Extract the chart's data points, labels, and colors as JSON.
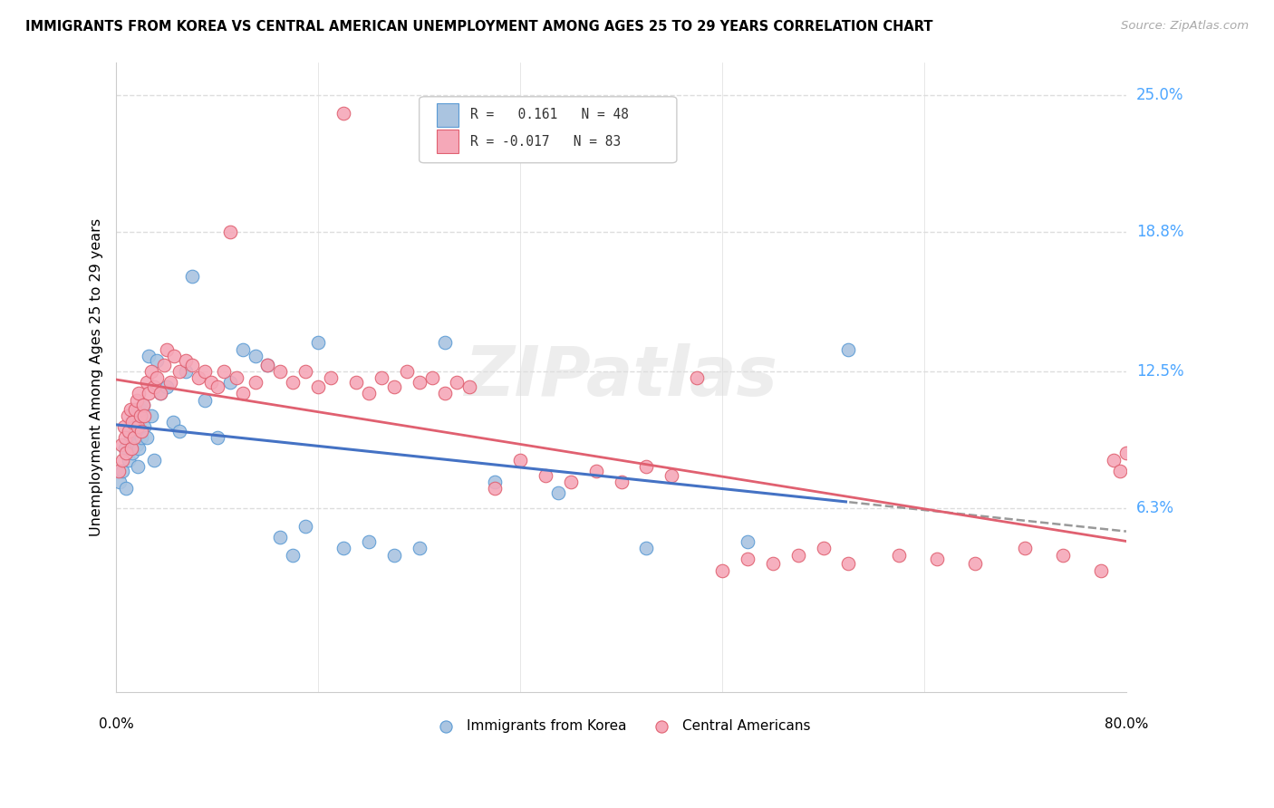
{
  "title": "IMMIGRANTS FROM KOREA VS CENTRAL AMERICAN UNEMPLOYMENT AMONG AGES 25 TO 29 YEARS CORRELATION CHART",
  "source": "Source: ZipAtlas.com",
  "ylabel": "Unemployment Among Ages 25 to 29 years",
  "xlim": [
    0,
    80
  ],
  "ylim": [
    -2,
    26.5
  ],
  "yticks": [
    6.3,
    12.5,
    18.8,
    25.0
  ],
  "ytick_labels": [
    "6.3%",
    "12.5%",
    "18.8%",
    "25.0%"
  ],
  "color_korea_fill": "#aac4e0",
  "color_korea_edge": "#5b9bd5",
  "color_central_fill": "#f5a8b8",
  "color_central_edge": "#e06070",
  "color_trend_korea": "#4472c4",
  "color_trend_central": "#e06070",
  "color_trend_dash": "#999999",
  "color_grid": "#dddddd",
  "korea_x": [
    0.3,
    0.5,
    0.7,
    0.8,
    1.0,
    1.1,
    1.2,
    1.3,
    1.4,
    1.5,
    1.6,
    1.7,
    1.8,
    1.9,
    2.0,
    2.1,
    2.2,
    2.4,
    2.6,
    2.8,
    3.0,
    3.2,
    3.5,
    4.0,
    4.5,
    5.0,
    5.5,
    6.0,
    7.0,
    8.0,
    9.0,
    10.0,
    11.0,
    12.0,
    13.0,
    14.0,
    15.0,
    16.0,
    18.0,
    20.0,
    22.0,
    24.0,
    26.0,
    30.0,
    35.0,
    42.0,
    50.0,
    58.0
  ],
  "korea_y": [
    7.5,
    8.0,
    9.0,
    7.2,
    8.5,
    9.5,
    10.2,
    8.8,
    9.8,
    10.5,
    9.2,
    8.2,
    9.0,
    10.8,
    9.5,
    11.0,
    10.0,
    9.5,
    13.2,
    10.5,
    8.5,
    13.0,
    11.5,
    11.8,
    10.2,
    9.8,
    12.5,
    16.8,
    11.2,
    9.5,
    12.0,
    13.5,
    13.2,
    12.8,
    5.0,
    4.2,
    5.5,
    13.8,
    4.5,
    4.8,
    4.2,
    4.5,
    13.8,
    7.5,
    7.0,
    4.5,
    4.8,
    13.5
  ],
  "central_x": [
    0.2,
    0.4,
    0.5,
    0.6,
    0.7,
    0.8,
    0.9,
    1.0,
    1.1,
    1.2,
    1.3,
    1.4,
    1.5,
    1.6,
    1.7,
    1.8,
    1.9,
    2.0,
    2.1,
    2.2,
    2.4,
    2.6,
    2.8,
    3.0,
    3.2,
    3.5,
    3.8,
    4.0,
    4.3,
    4.6,
    5.0,
    5.5,
    6.0,
    6.5,
    7.0,
    7.5,
    8.0,
    8.5,
    9.0,
    9.5,
    10.0,
    11.0,
    12.0,
    13.0,
    14.0,
    15.0,
    16.0,
    17.0,
    18.0,
    19.0,
    20.0,
    21.0,
    22.0,
    23.0,
    24.0,
    25.0,
    26.0,
    27.0,
    28.0,
    30.0,
    32.0,
    34.0,
    36.0,
    38.0,
    40.0,
    42.0,
    44.0,
    46.0,
    48.0,
    50.0,
    52.0,
    54.0,
    56.0,
    58.0,
    62.0,
    65.0,
    68.0,
    72.0,
    75.0,
    78.0,
    79.0,
    79.5,
    80.0
  ],
  "central_y": [
    8.0,
    9.2,
    8.5,
    10.0,
    9.5,
    8.8,
    10.5,
    9.8,
    10.8,
    9.0,
    10.2,
    9.5,
    10.8,
    11.2,
    10.0,
    11.5,
    10.5,
    9.8,
    11.0,
    10.5,
    12.0,
    11.5,
    12.5,
    11.8,
    12.2,
    11.5,
    12.8,
    13.5,
    12.0,
    13.2,
    12.5,
    13.0,
    12.8,
    12.2,
    12.5,
    12.0,
    11.8,
    12.5,
    18.8,
    12.2,
    11.5,
    12.0,
    12.8,
    12.5,
    12.0,
    12.5,
    11.8,
    12.2,
    24.2,
    12.0,
    11.5,
    12.2,
    11.8,
    12.5,
    12.0,
    12.2,
    11.5,
    12.0,
    11.8,
    7.2,
    8.5,
    7.8,
    7.5,
    8.0,
    7.5,
    8.2,
    7.8,
    12.2,
    3.5,
    4.0,
    3.8,
    4.2,
    4.5,
    3.8,
    4.2,
    4.0,
    3.8,
    4.5,
    4.2,
    3.5,
    8.5,
    8.0,
    8.8
  ],
  "background_color": "#ffffff"
}
